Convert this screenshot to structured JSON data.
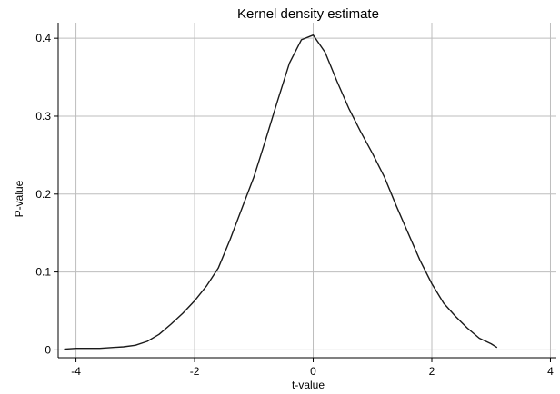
{
  "chart_data": {
    "type": "line",
    "title": "Kernel density estimate",
    "xlabel": "t-value",
    "ylabel": "P-value",
    "xlim": [
      -4.3,
      4.1
    ],
    "ylim": [
      -0.01,
      0.42
    ],
    "xticks": [
      -4,
      -2,
      0,
      2,
      4
    ],
    "yticks": [
      0,
      0.1,
      0.2,
      0.3,
      0.4
    ],
    "xtick_labels": [
      "-4",
      "-2",
      "0",
      "2",
      "4"
    ],
    "ytick_labels": [
      "0",
      "0.1",
      "0.2",
      "0.3",
      "0.4"
    ],
    "grid": true,
    "series": [
      {
        "line_color": "#1a1a1a",
        "x": [
          -4.2,
          -4.0,
          -3.8,
          -3.6,
          -3.4,
          -3.2,
          -3.0,
          -2.8,
          -2.6,
          -2.4,
          -2.2,
          -2.0,
          -1.8,
          -1.6,
          -1.4,
          -1.2,
          -1.0,
          -0.8,
          -0.6,
          -0.4,
          -0.2,
          0.0,
          0.2,
          0.4,
          0.6,
          0.8,
          1.0,
          1.2,
          1.4,
          1.6,
          1.8,
          2.0,
          2.2,
          2.4,
          2.6,
          2.8,
          3.0,
          3.1
        ],
        "y": [
          0.001,
          0.002,
          0.002,
          0.002,
          0.003,
          0.004,
          0.006,
          0.011,
          0.02,
          0.033,
          0.047,
          0.063,
          0.082,
          0.105,
          0.142,
          0.182,
          0.222,
          0.27,
          0.32,
          0.368,
          0.398,
          0.404,
          0.382,
          0.345,
          0.31,
          0.28,
          0.252,
          0.222,
          0.185,
          0.15,
          0.115,
          0.085,
          0.06,
          0.043,
          0.028,
          0.015,
          0.008,
          0.003
        ]
      }
    ]
  }
}
